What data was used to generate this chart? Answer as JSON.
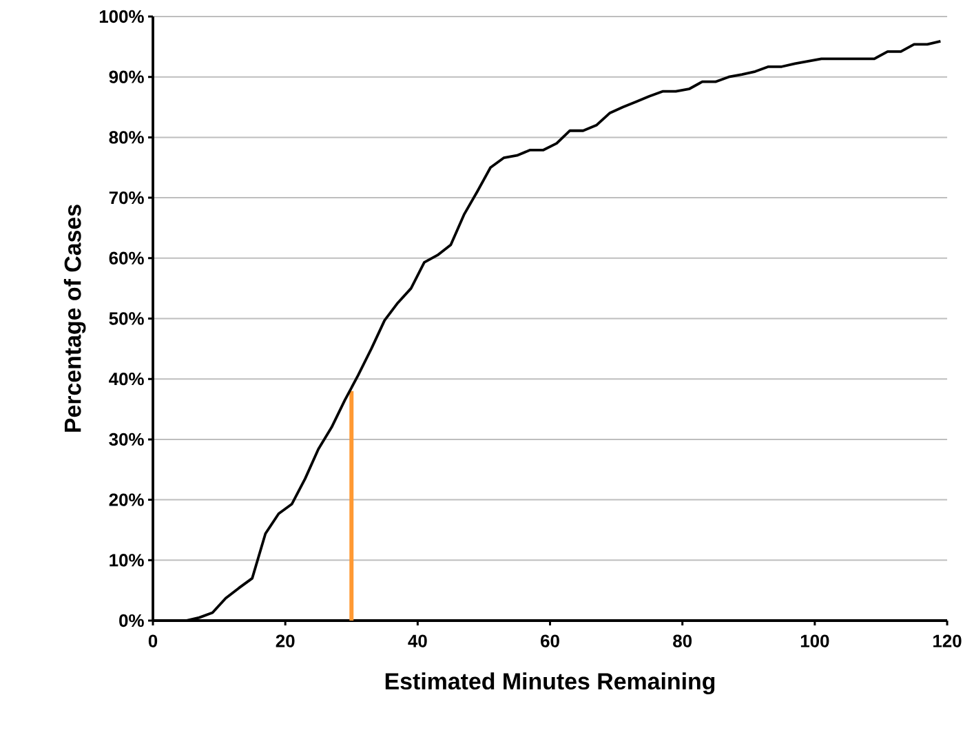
{
  "chart_data": {
    "type": "line",
    "xlabel": "Estimated Minutes Remaining",
    "ylabel": "Percentage of Cases",
    "xlim": [
      0,
      120
    ],
    "xticks": [
      0,
      20,
      40,
      60,
      80,
      100,
      120
    ],
    "ylim": [
      0,
      100
    ],
    "yticks": [
      {
        "value": 0,
        "label": "0%"
      },
      {
        "value": 10,
        "label": "10%"
      },
      {
        "value": 20,
        "label": "20%"
      },
      {
        "value": 30,
        "label": "30%"
      },
      {
        "value": 40,
        "label": "40%"
      },
      {
        "value": 50,
        "label": "50%"
      },
      {
        "value": 60,
        "label": "60%"
      },
      {
        "value": 70,
        "label": "70%"
      },
      {
        "value": 80,
        "label": "80%"
      },
      {
        "value": 90,
        "label": "90%"
      },
      {
        "value": 100,
        "label": "100%"
      }
    ],
    "grid": "y",
    "series": [
      {
        "color": "#000000",
        "x": [
          1,
          3,
          5,
          7,
          9,
          11,
          13,
          15,
          17,
          19,
          21,
          23,
          25,
          27,
          29,
          31,
          33,
          35,
          37,
          39,
          41,
          43,
          45,
          47,
          49,
          51,
          53,
          55,
          57,
          59,
          61,
          63,
          65,
          67,
          69,
          71,
          73,
          75,
          77,
          79,
          81,
          83,
          85,
          87,
          89,
          91,
          93,
          95,
          97,
          99,
          101,
          103,
          105,
          107,
          109,
          111,
          113,
          115,
          117,
          119
        ],
        "values": [
          0,
          0,
          0,
          0.5,
          1.3,
          3.7,
          5.4,
          7.0,
          14.4,
          17.7,
          19.3,
          23.5,
          28.4,
          32,
          36.5,
          40.6,
          45,
          49.7,
          52.6,
          55,
          59.3,
          60.5,
          62.2,
          67.2,
          71,
          75,
          76.6,
          77,
          77.9,
          77.9,
          79,
          81.1,
          81.1,
          82,
          84,
          85,
          85.9,
          86.8,
          87.6,
          87.6,
          88,
          89.2,
          89.2,
          90,
          90.4,
          90.9,
          91.7,
          91.7,
          92.2,
          92.6,
          93,
          93,
          93,
          93,
          93,
          94.2,
          94.2,
          95.4,
          95.4,
          95.9
        ]
      },
      {
        "color": "#ff9933",
        "x": [
          30,
          30
        ],
        "values": [
          0,
          38
        ]
      }
    ]
  }
}
